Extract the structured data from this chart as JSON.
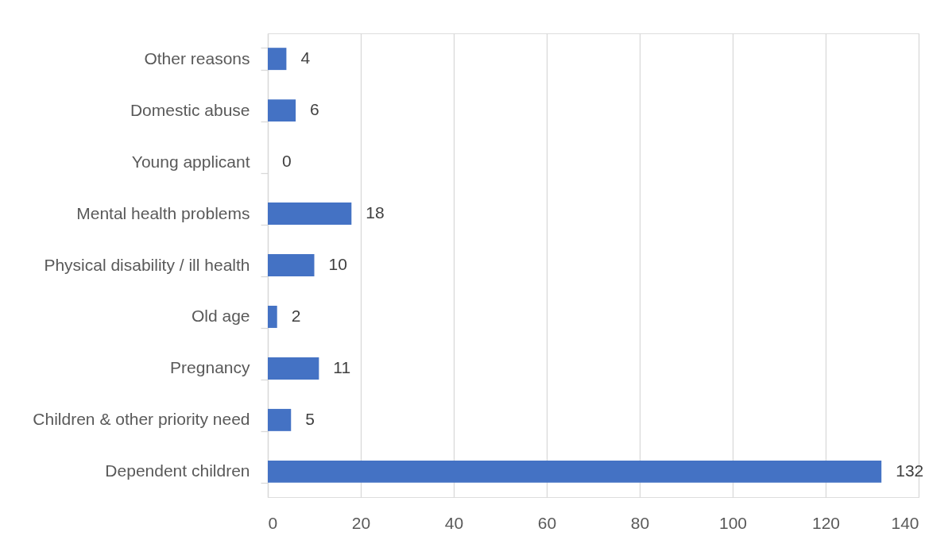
{
  "chart_data": {
    "type": "bar",
    "orientation": "horizontal",
    "categories": [
      "Other reasons",
      "Domestic abuse",
      "Young applicant",
      "Mental health problems",
      "Physical disability / ill health",
      "Old age",
      "Pregnancy",
      "Children & other priority need",
      "Dependent children"
    ],
    "values": [
      4,
      6,
      0,
      18,
      10,
      2,
      11,
      5,
      132
    ],
    "color": "#4472c4",
    "xlim": [
      0,
      140
    ],
    "xticks": [
      0,
      20,
      40,
      60,
      80,
      100,
      120,
      140
    ],
    "grid": "x",
    "data_labels": true
  }
}
